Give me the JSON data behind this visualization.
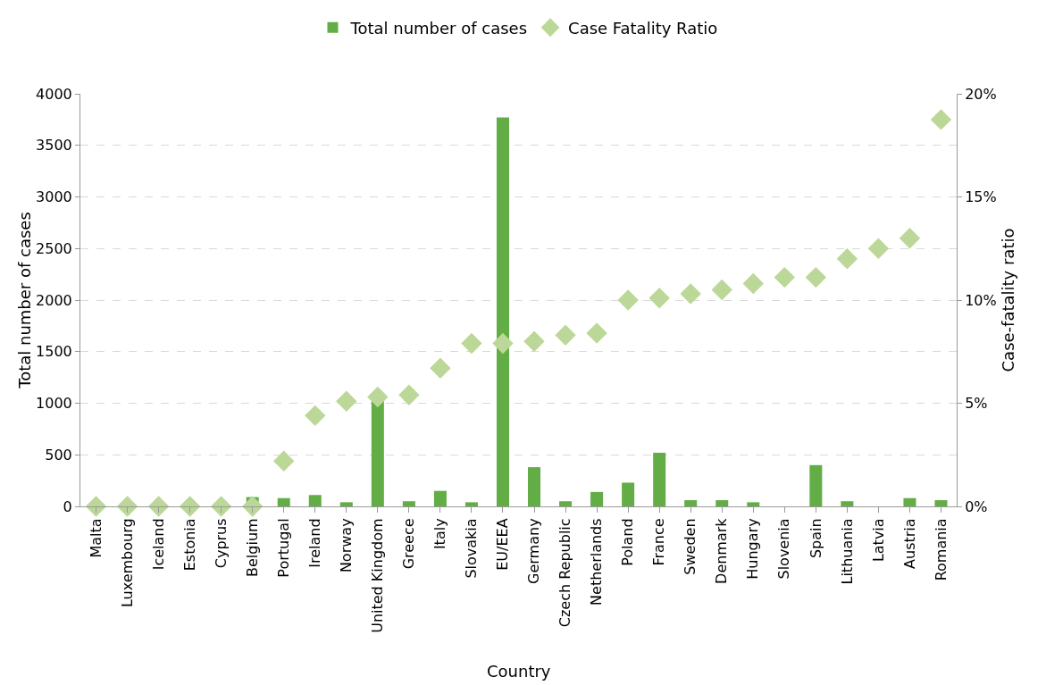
{
  "chart_data": {
    "type": "bar",
    "xlabel": "Country",
    "ylabel": "Total number of cases",
    "y2label": "Case-fatality ratio",
    "categories": [
      "Malta",
      "Luxembourg",
      "Iceland",
      "Estonia",
      "Cyprus",
      "Belgium",
      "Portugal",
      "Ireland",
      "Norway",
      "United Kingdom",
      "Greece",
      "Italy",
      "Slovakia",
      "EU/EEA",
      "Germany",
      "Czech Republic",
      "Netherlands",
      "Poland",
      "France",
      "Sweden",
      "Denmark",
      "Hungary",
      "Slovenia",
      "Spain",
      "Lithuania",
      "Latvia",
      "Austria",
      "Romania"
    ],
    "series": [
      {
        "name": "Total number of cases",
        "color": "#62ad45",
        "values": [
          0,
          0,
          0,
          0,
          0,
          90,
          80,
          110,
          40,
          1050,
          50,
          150,
          40,
          3770,
          380,
          50,
          140,
          230,
          520,
          60,
          60,
          40,
          0,
          400,
          50,
          0,
          80,
          60
        ]
      },
      {
        "name": "Case Fatality Ratio",
        "type": "scatter",
        "axis": "y2",
        "marker": "diamond",
        "color": "#bcd898",
        "values": [
          0,
          0,
          0,
          0,
          0,
          0,
          2.2,
          4.4,
          5.1,
          5.3,
          5.4,
          6.7,
          7.9,
          7.9,
          8.0,
          8.3,
          8.4,
          10.0,
          10.1,
          10.3,
          10.5,
          10.8,
          11.1,
          11.1,
          12.0,
          12.5,
          13.0,
          18.75
        ]
      }
    ],
    "ylim": [
      0,
      4000
    ],
    "yticks": [
      0,
      500,
      1000,
      1500,
      2000,
      2500,
      3000,
      3500,
      4000
    ],
    "y2lim": [
      0,
      20
    ],
    "y2ticks": [
      {
        "value": 0,
        "label": "0%"
      },
      {
        "value": 5,
        "label": "5%"
      },
      {
        "value": 10,
        "label": "10%"
      },
      {
        "value": 15,
        "label": "15%"
      },
      {
        "value": 20,
        "label": "20%"
      }
    ],
    "grid": "y",
    "legend": "top"
  }
}
